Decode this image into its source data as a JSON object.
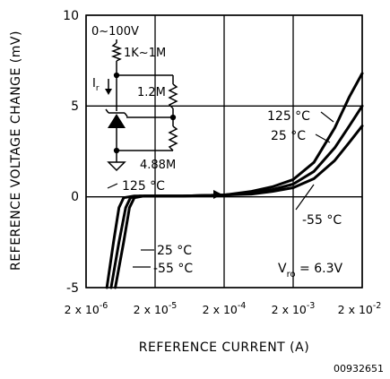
{
  "chart_data": {
    "type": "line",
    "xlabel": "REFERENCE CURRENT (A)",
    "ylabel": "REFERENCE VOLTAGE CHANGE (mV)",
    "x_scale": "log",
    "xlim": [
      2e-06,
      0.02
    ],
    "ylim": [
      -5,
      10
    ],
    "x_ticks": [
      {
        "value": 2e-06,
        "mantissa": "2",
        "exponent": "-6"
      },
      {
        "value": 2e-05,
        "mantissa": "2",
        "exponent": "-5"
      },
      {
        "value": 0.0002,
        "mantissa": "2",
        "exponent": "-4"
      },
      {
        "value": 0.002,
        "mantissa": "2",
        "exponent": "-3"
      },
      {
        "value": 0.02,
        "mantissa": "2",
        "exponent": "-2"
      }
    ],
    "y_ticks": [
      -5,
      0,
      5,
      10
    ],
    "grid": true,
    "series": [
      {
        "name": "125 °C",
        "points": [
          [
            4e-06,
            -5
          ],
          [
            5e-06,
            -2.5
          ],
          [
            6e-06,
            -0.6
          ],
          [
            7e-06,
            -0.05
          ],
          [
            1e-05,
            0.05
          ],
          [
            2e-05,
            0.05
          ],
          [
            5e-05,
            0.05
          ],
          [
            0.0002,
            0.1
          ],
          [
            0.0005,
            0.3
          ],
          [
            0.001,
            0.55
          ],
          [
            0.002,
            0.95
          ],
          [
            0.004,
            1.9
          ],
          [
            0.008,
            3.8
          ],
          [
            0.013,
            5.5
          ],
          [
            0.02,
            6.8
          ]
        ]
      },
      {
        "name": "25 °C",
        "points": [
          [
            4.6e-06,
            -5
          ],
          [
            6e-06,
            -2.5
          ],
          [
            7.5e-06,
            -0.6
          ],
          [
            8.8e-06,
            -0.05
          ],
          [
            1.2e-05,
            0.05
          ],
          [
            2e-05,
            0.05
          ],
          [
            5e-05,
            0.05
          ],
          [
            0.0002,
            0.1
          ],
          [
            0.0005,
            0.2
          ],
          [
            0.001,
            0.4
          ],
          [
            0.002,
            0.7
          ],
          [
            0.004,
            1.4
          ],
          [
            0.008,
            2.7
          ],
          [
            0.013,
            3.9
          ],
          [
            0.02,
            5.0
          ]
        ]
      },
      {
        "name": "-55 °C",
        "points": [
          [
            5.3e-06,
            -5
          ],
          [
            7e-06,
            -2.5
          ],
          [
            8.5e-06,
            -0.6
          ],
          [
            1e-05,
            -0.05
          ],
          [
            1.4e-05,
            0.05
          ],
          [
            2e-05,
            0.05
          ],
          [
            5e-05,
            0.05
          ],
          [
            0.0002,
            0.1
          ],
          [
            0.0005,
            0.15
          ],
          [
            0.001,
            0.3
          ],
          [
            0.002,
            0.5
          ],
          [
            0.004,
            1.0
          ],
          [
            0.008,
            2.0
          ],
          [
            0.013,
            3.0
          ],
          [
            0.02,
            3.9
          ]
        ]
      }
    ],
    "annotations": {
      "vro": {
        "v": "V",
        "sub": "ro",
        "rest": " = 6.3V"
      },
      "figure_id": "00932651",
      "circuit": {
        "supply": "0~100V",
        "r1": "1K~1M",
        "ir": {
          "base": "I",
          "sub": "r"
        },
        "r2": "1.2M",
        "r3": "4.88M"
      }
    }
  }
}
